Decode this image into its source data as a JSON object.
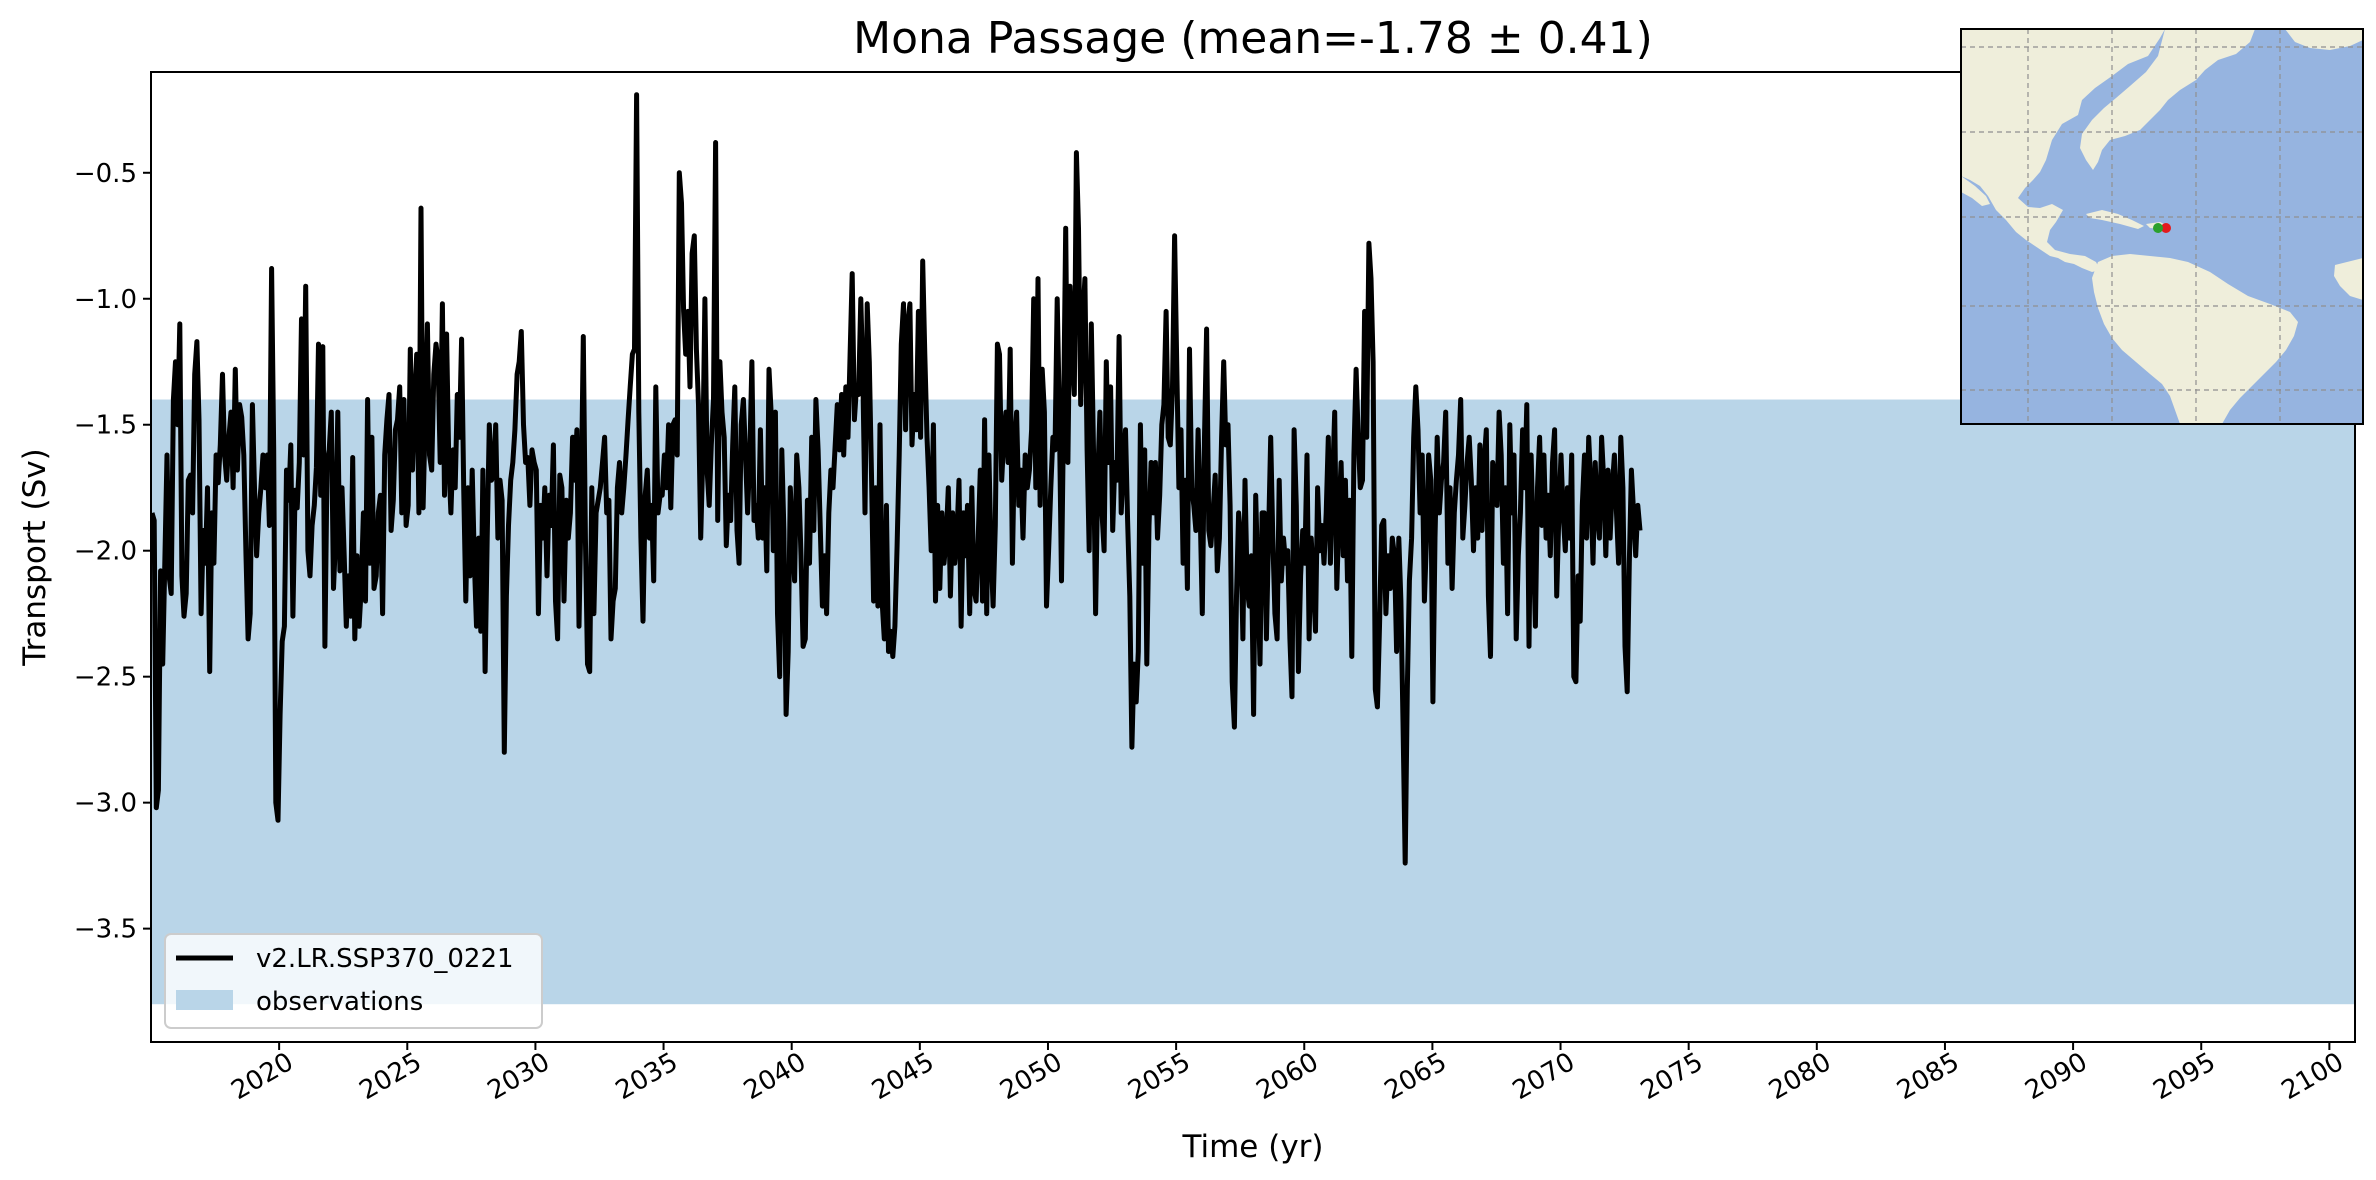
{
  "chart_data": {
    "type": "line",
    "title": "Mona Passage (mean=-1.78 ± 0.41)",
    "xlabel": "Time (yr)",
    "ylabel": "Transport (Sv)",
    "xlim": [
      2015,
      2101
    ],
    "ylim": [
      -3.95,
      -0.1
    ],
    "x_ticks": [
      2020,
      2025,
      2030,
      2035,
      2040,
      2045,
      2050,
      2055,
      2060,
      2065,
      2070,
      2075,
      2080,
      2085,
      2090,
      2095,
      2100
    ],
    "y_ticks": [
      -3.5,
      -3.0,
      -2.5,
      -2.0,
      -1.5,
      -1.0,
      -0.5
    ],
    "y_tick_labels": [
      "−3.5",
      "−3.0",
      "−2.5",
      "−2.0",
      "−1.5",
      "−1.0",
      "−0.5"
    ],
    "grid": false,
    "legend_position": "lower-left",
    "series": [
      {
        "name": "v2.LR.SSP370_0221",
        "color": "#000000",
        "x_start": 2015.04,
        "x_step": 0.0833,
        "values": [
          -1.85,
          -1.88,
          -3.02,
          -2.95,
          -2.08,
          -2.45,
          -2.05,
          -1.62,
          -2.1,
          -2.17,
          -1.4,
          -1.25,
          -1.5,
          -1.1,
          -2.1,
          -2.26,
          -2.17,
          -1.72,
          -1.7,
          -1.85,
          -1.3,
          -1.17,
          -1.48,
          -2.25,
          -1.92,
          -2.05,
          -1.75,
          -2.48,
          -1.85,
          -2.05,
          -1.62,
          -1.73,
          -1.58,
          -1.3,
          -1.62,
          -1.72,
          -1.55,
          -1.45,
          -1.75,
          -1.28,
          -1.68,
          -1.42,
          -1.47,
          -1.62,
          -2.02,
          -2.35,
          -2.25,
          -1.42,
          -1.75,
          -2.02,
          -1.85,
          -1.75,
          -1.62,
          -1.75,
          -1.62,
          -1.9,
          -0.88,
          -1.6,
          -3.0,
          -3.07,
          -2.65,
          -2.36,
          -2.3,
          -1.68,
          -1.8,
          -1.58,
          -2.26,
          -1.76,
          -1.83,
          -1.65,
          -1.08,
          -1.62,
          -0.95,
          -2.0,
          -2.1,
          -1.9,
          -1.82,
          -1.67,
          -1.18,
          -1.78,
          -1.19,
          -2.38,
          -1.65,
          -1.6,
          -1.45,
          -2.15,
          -1.95,
          -1.45,
          -2.08,
          -1.75,
          -2.02,
          -2.3,
          -2.1,
          -2.26,
          -1.63,
          -2.35,
          -2.02,
          -2.3,
          -2.15,
          -1.85,
          -2.2,
          -1.4,
          -2.05,
          -1.55,
          -2.15,
          -2.1,
          -1.85,
          -1.78,
          -2.25,
          -1.62,
          -1.48,
          -1.38,
          -1.92,
          -1.8,
          -1.52,
          -1.48,
          -1.35,
          -1.85,
          -1.4,
          -1.9,
          -1.82,
          -1.2,
          -1.68,
          -1.4,
          -1.22,
          -1.85,
          -0.64,
          -1.83,
          -1.45,
          -1.1,
          -1.62,
          -1.68,
          -1.3,
          -1.18,
          -1.25,
          -1.65,
          -1.02,
          -1.78,
          -1.14,
          -1.65,
          -1.85,
          -1.6,
          -1.75,
          -1.38,
          -1.55,
          -1.16,
          -1.75,
          -2.2,
          -1.75,
          -2.1,
          -1.68,
          -2.05,
          -2.3,
          -1.95,
          -2.32,
          -1.68,
          -2.48,
          -1.95,
          -1.5,
          -1.72,
          -1.7,
          -1.5,
          -1.95,
          -1.72,
          -1.8,
          -2.8,
          -2.18,
          -1.9,
          -1.72,
          -1.65,
          -1.52,
          -1.3,
          -1.25,
          -1.13,
          -1.5,
          -1.65,
          -1.63,
          -1.82,
          -1.6,
          -1.65,
          -1.68,
          -2.25,
          -1.82,
          -1.95,
          -1.75,
          -2.1,
          -1.78,
          -1.9,
          -1.58,
          -2.2,
          -2.35,
          -1.7,
          -1.75,
          -2.2,
          -1.8,
          -1.95,
          -1.85,
          -1.55,
          -1.72,
          -1.52,
          -2.3,
          -1.82,
          -1.15,
          -1.95,
          -2.45,
          -2.48,
          -1.75,
          -2.25,
          -1.85,
          -1.8,
          -1.75,
          -1.65,
          -1.55,
          -1.85,
          -1.8,
          -2.35,
          -2.2,
          -2.15,
          -1.75,
          -1.65,
          -1.85,
          -1.75,
          -1.62,
          -1.48,
          -1.35,
          -1.22,
          -1.2,
          -0.19,
          -1.45,
          -1.95,
          -2.28,
          -1.78,
          -1.68,
          -1.95,
          -1.82,
          -2.12,
          -1.35,
          -1.85,
          -1.78,
          -1.78,
          -1.62,
          -1.75,
          -1.5,
          -1.83,
          -1.5,
          -1.48,
          -1.62,
          -0.5,
          -0.62,
          -1.05,
          -1.22,
          -1.05,
          -1.35,
          -0.82,
          -0.75,
          -1.2,
          -1.42,
          -1.95,
          -1.62,
          -1.0,
          -1.68,
          -1.82,
          -1.58,
          -1.4,
          -0.38,
          -1.88,
          -1.25,
          -1.45,
          -1.55,
          -1.98,
          -1.78,
          -1.88,
          -1.58,
          -1.35,
          -1.92,
          -2.05,
          -1.5,
          -1.4,
          -1.62,
          -1.85,
          -1.62,
          -1.25,
          -1.88,
          -1.82,
          -1.95,
          -1.52,
          -1.95,
          -1.75,
          -2.08,
          -1.28,
          -1.45,
          -2.0,
          -1.45,
          -2.25,
          -2.5,
          -1.6,
          -1.92,
          -2.65,
          -2.4,
          -1.75,
          -1.95,
          -2.12,
          -1.62,
          -1.75,
          -2.02,
          -2.38,
          -2.35,
          -1.8,
          -2.05,
          -1.55,
          -1.92,
          -1.4,
          -1.6,
          -1.9,
          -2.22,
          -2.02,
          -2.25,
          -1.85,
          -1.68,
          -1.75,
          -1.58,
          -1.42,
          -1.6,
          -1.38,
          -1.62,
          -1.35,
          -1.55,
          -1.22,
          -0.9,
          -1.48,
          -1.35,
          -1.38,
          -1.0,
          -1.32,
          -1.85,
          -1.02,
          -1.25,
          -1.7,
          -2.2,
          -1.75,
          -2.22,
          -1.5,
          -2.2,
          -2.35,
          -1.82,
          -2.4,
          -2.32,
          -2.42,
          -2.3,
          -1.98,
          -1.62,
          -1.18,
          -1.02,
          -1.52,
          -1.1,
          -1.02,
          -1.58,
          -1.38,
          -1.52,
          -1.05,
          -1.55,
          -0.85,
          -1.22,
          -1.55,
          -1.75,
          -2.0,
          -1.5,
          -2.2,
          -1.82,
          -2.15,
          -1.85,
          -2.05,
          -1.95,
          -1.75,
          -2.18,
          -1.85,
          -2.05,
          -1.95,
          -1.72,
          -2.3,
          -1.85,
          -2.02,
          -1.82,
          -2.25,
          -1.75,
          -2.15,
          -2.2,
          -1.95,
          -1.68,
          -2.2,
          -1.48,
          -2.25,
          -1.62,
          -2.0,
          -2.22,
          -1.9,
          -1.18,
          -1.22,
          -1.72,
          -1.55,
          -1.45,
          -1.65,
          -1.2,
          -2.05,
          -1.58,
          -1.45,
          -1.82,
          -1.68,
          -1.95,
          -1.62,
          -1.75,
          -1.68,
          -1.52,
          -1.0,
          -1.75,
          -0.92,
          -1.82,
          -1.28,
          -1.45,
          -2.22,
          -2.0,
          -1.75,
          -1.55,
          -1.6,
          -1.0,
          -1.45,
          -2.12,
          -1.45,
          -0.72,
          -1.65,
          -0.95,
          -1.2,
          -1.38,
          -0.42,
          -0.72,
          -1.42,
          -1.08,
          -0.92,
          -1.6,
          -2.0,
          -1.1,
          -1.6,
          -2.25,
          -1.72,
          -1.45,
          -1.85,
          -2.0,
          -1.25,
          -1.65,
          -1.35,
          -1.92,
          -1.65,
          -1.72,
          -1.15,
          -1.85,
          -1.65,
          -1.52,
          -1.88,
          -2.18,
          -2.78,
          -2.45,
          -2.6,
          -2.4,
          -1.5,
          -2.05,
          -1.6,
          -2.45,
          -1.9,
          -1.65,
          -1.85,
          -1.65,
          -1.95,
          -1.78,
          -1.5,
          -1.42,
          -1.05,
          -1.55,
          -1.58,
          -1.35,
          -0.75,
          -1.25,
          -1.75,
          -1.52,
          -2.05,
          -1.72,
          -2.15,
          -1.2,
          -1.75,
          -1.82,
          -1.92,
          -1.52,
          -1.85,
          -2.25,
          -1.55,
          -1.12,
          -1.92,
          -1.98,
          -1.85,
          -1.7,
          -2.08,
          -1.95,
          -1.55,
          -1.25,
          -1.58,
          -1.5,
          -1.82,
          -2.52,
          -2.7,
          -2.18,
          -1.85,
          -1.95,
          -2.35,
          -1.72,
          -2.15,
          -2.22,
          -2.02,
          -2.65,
          -1.78,
          -2.12,
          -2.45,
          -1.85,
          -1.85,
          -2.35,
          -1.95,
          -1.55,
          -1.95,
          -2.25,
          -2.35,
          -1.72,
          -2.12,
          -1.95,
          -2.05,
          -2.0,
          -2.35,
          -2.58,
          -1.52,
          -1.82,
          -2.48,
          -2.1,
          -1.92,
          -2.05,
          -1.62,
          -2.35,
          -1.95,
          -2.12,
          -2.32,
          -1.75,
          -2.0,
          -1.9,
          -2.05,
          -1.85,
          -1.55,
          -2.05,
          -1.72,
          -1.45,
          -2.15,
          -1.85,
          -1.65,
          -2.02,
          -1.72,
          -2.12,
          -1.8,
          -2.42,
          -1.62,
          -1.28,
          -1.55,
          -1.75,
          -1.72,
          -1.05,
          -1.55,
          -0.78,
          -0.92,
          -1.25,
          -2.55,
          -2.62,
          -2.3,
          -1.9,
          -1.88,
          -2.25,
          -2.02,
          -2.15,
          -1.95,
          -2.02,
          -2.4,
          -1.95,
          -2.2,
          -2.68,
          -3.24,
          -2.55,
          -2.12,
          -1.95,
          -1.55,
          -1.35,
          -1.52,
          -1.85,
          -1.62,
          -2.2,
          -1.95,
          -1.62,
          -1.72,
          -2.6,
          -1.95,
          -1.55,
          -1.85,
          -1.72,
          -1.65,
          -1.45,
          -2.05,
          -1.75,
          -2.15,
          -1.85,
          -1.72,
          -1.62,
          -1.4,
          -1.95,
          -1.82,
          -1.65,
          -1.55,
          -1.72,
          -2.0,
          -1.75,
          -1.95,
          -1.58,
          -1.92,
          -1.65,
          -1.52,
          -2.18,
          -2.42,
          -1.65,
          -1.72,
          -1.82,
          -1.45,
          -1.62,
          -2.05,
          -1.75,
          -2.25,
          -1.5,
          -1.85,
          -1.62,
          -2.35,
          -2.02,
          -1.85,
          -1.52,
          -1.75,
          -1.42,
          -2.38,
          -1.62,
          -1.95,
          -2.3,
          -1.75,
          -1.55,
          -1.9,
          -1.62,
          -1.95,
          -1.78,
          -2.02,
          -1.65,
          -1.52,
          -2.18,
          -1.85,
          -1.62,
          -1.85,
          -2.0,
          -1.75,
          -1.95,
          -1.62,
          -2.5,
          -2.52,
          -2.1,
          -2.28,
          -1.82,
          -1.62,
          -1.95,
          -1.55,
          -1.75,
          -2.05,
          -1.65,
          -1.85,
          -1.95,
          -1.55,
          -1.72,
          -2.02,
          -1.68,
          -1.95,
          -1.75,
          -1.62,
          -1.85,
          -2.05,
          -1.55,
          -1.75,
          -2.38,
          -2.56,
          -2.05,
          -1.68,
          -1.85,
          -2.02,
          -1.82,
          -1.92
        ]
      }
    ],
    "bands": [
      {
        "name": "observations",
        "color": "#b9d5e8",
        "y0": -3.8,
        "y1": -1.4
      }
    ]
  },
  "colors": {
    "map_ocean": "#96b4e0",
    "map_land": "#efeedb",
    "map_grid": "#8f8f8f",
    "marker_red": "#e41a1c",
    "marker_green": "#2ca02c"
  },
  "inset_map": {
    "projection_grid": true,
    "markers": [
      "marker_red",
      "marker_green"
    ]
  }
}
